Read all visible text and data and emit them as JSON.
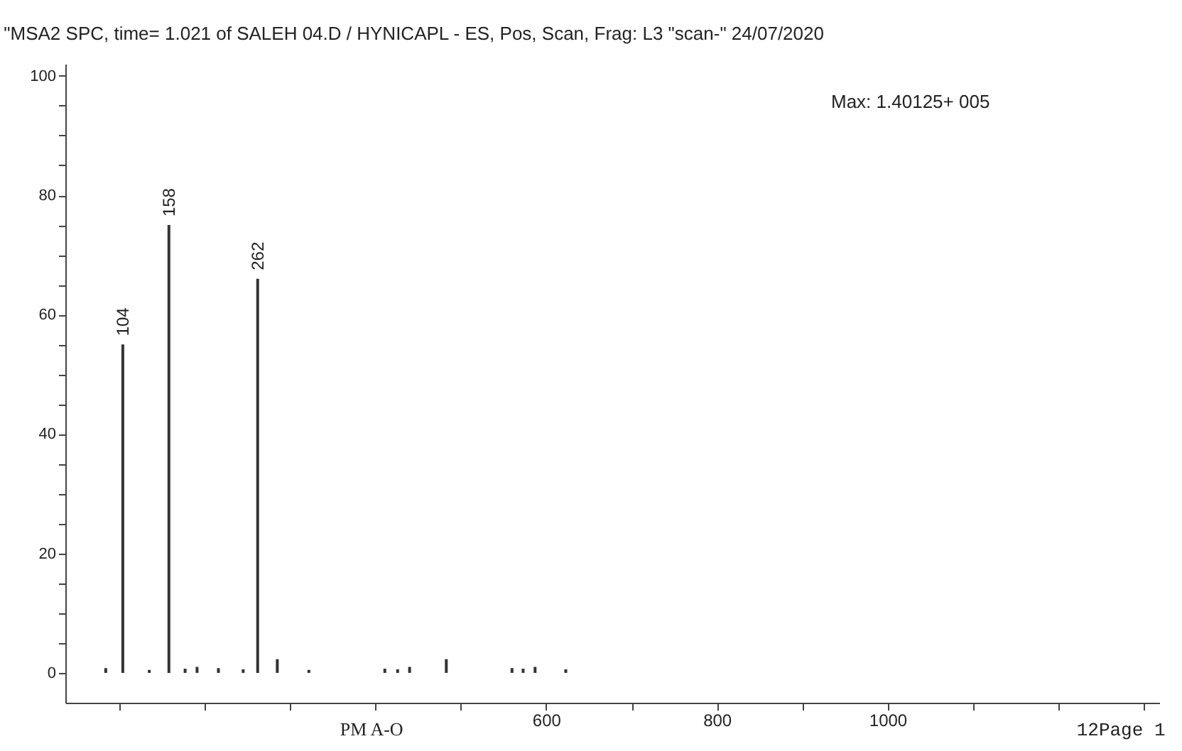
{
  "chart_data": {
    "type": "bar",
    "title": "\"MSA2 SPC, time= 1.021 of SALEH 04.D / HYNICAPL - ES, Pos, Scan, Frag: L3  \"scan-\" 24/07/2020",
    "x": [
      84,
      104,
      135,
      158,
      177,
      191,
      216,
      245,
      262,
      285,
      322,
      411,
      426,
      440,
      483,
      560,
      573,
      587,
      623
    ],
    "values": [
      0.8,
      55,
      0.5,
      75,
      0.7,
      1,
      0.8,
      0.6,
      66,
      2.3,
      0.5,
      0.7,
      0.6,
      1,
      2.3,
      0.8,
      0.7,
      1,
      0.6
    ],
    "color": "#333333",
    "xlim": [
      45,
      1310
    ],
    "xticks": [
      {
        "value": 100,
        "label": null
      },
      {
        "value": 200,
        "label": null
      },
      {
        "value": 300,
        "label": null
      },
      {
        "value": 400,
        "label": null
      },
      {
        "value": 500,
        "label": null
      },
      600,
      {
        "value": 700,
        "label": null
      },
      800,
      {
        "value": 900,
        "label": null
      },
      1000,
      {
        "value": 1100,
        "label": null
      },
      {
        "value": 1200,
        "label": null
      },
      {
        "value": 1300,
        "label": null
      }
    ],
    "ylim": [
      -5,
      102
    ],
    "yticks": [
      0,
      {
        "value": 5,
        "label": null
      },
      {
        "value": 10,
        "label": null
      },
      {
        "value": 15,
        "label": null
      },
      20,
      {
        "value": 25,
        "label": null
      },
      {
        "value": 30,
        "label": null
      },
      {
        "value": 35,
        "label": null
      },
      40,
      {
        "value": 45,
        "label": null
      },
      {
        "value": 50,
        "label": null
      },
      {
        "value": 55,
        "label": null
      },
      60,
      {
        "value": 65,
        "label": null
      },
      {
        "value": 70,
        "label": null
      },
      {
        "value": 75,
        "label": null
      },
      80,
      {
        "value": 85,
        "label": null
      },
      {
        "value": 90,
        "label": null
      },
      {
        "value": 95,
        "label": null
      },
      100
    ],
    "grid": false,
    "annotations": [
      {
        "text": "104",
        "x": 104,
        "y": 55
      },
      {
        "text": "158",
        "x": 158,
        "y": 75
      },
      {
        "text": "262",
        "x": 262,
        "y": 66
      },
      "Max: 1.40125+ 005",
      "PM A-O",
      "12Page 1"
    ]
  }
}
